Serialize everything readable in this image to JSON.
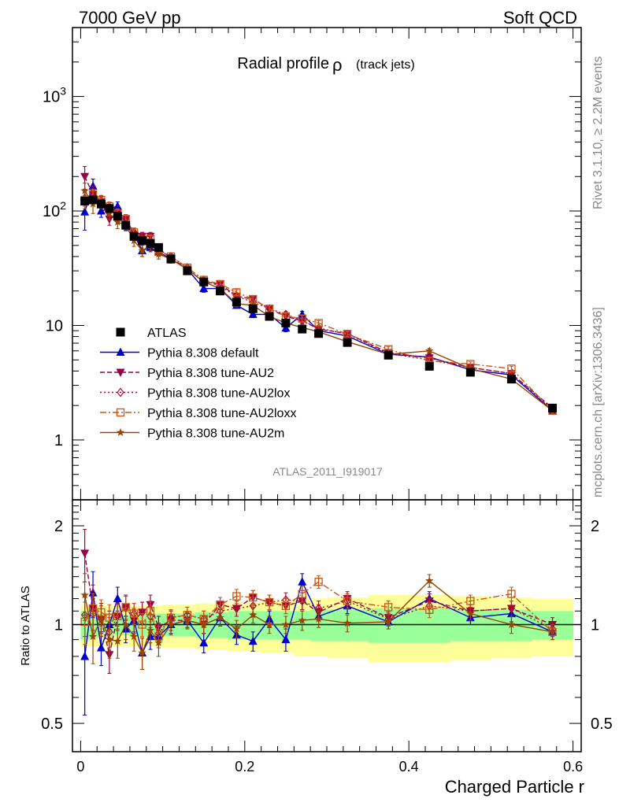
{
  "header": {
    "left": "7000 GeV pp",
    "right": "Soft QCD"
  },
  "side_text": {
    "rivet": "Rivet 3.1.10, ≥ 2.2M events",
    "mcplots": "mcplots.cern.ch [arXiv:1306.3436]"
  },
  "analysis_label": "ATLAS_2011_I919017",
  "colors": {
    "data": "#000000",
    "default": "#0000cc",
    "au2": "#990044",
    "au2lox": "#aa1133",
    "au2loxx": "#cc5511",
    "au2m": "#994400",
    "band_green": "#99ff99",
    "band_yellow": "#ffff99",
    "side_text": "#888888"
  },
  "chart_data": [
    {
      "type": "line",
      "title": "Radial profile",
      "title_symbol": "ρ",
      "title_suffix": "(track jets)",
      "y_scale": "log",
      "xlim": [
        -0.01,
        0.61
      ],
      "ylim": [
        0.3,
        4000
      ],
      "y_ticks": [
        {
          "value": 1,
          "label": "1"
        },
        {
          "value": 10,
          "label": "10"
        },
        {
          "value": 100,
          "label": "10",
          "sup": "2"
        },
        {
          "value": 1000,
          "label": "10",
          "sup": "3"
        }
      ],
      "legend_placement": "lower-left",
      "x": [
        0.005,
        0.015,
        0.025,
        0.035,
        0.045,
        0.055,
        0.065,
        0.075,
        0.085,
        0.095,
        0.11,
        0.13,
        0.15,
        0.17,
        0.19,
        0.21,
        0.23,
        0.25,
        0.27,
        0.29,
        0.325,
        0.375,
        0.425,
        0.475,
        0.525,
        0.575
      ],
      "series": [
        {
          "name": "ATLAS",
          "key": "data",
          "marker": "square",
          "dash": "",
          "values": [
            122,
            125,
            115,
            105,
            90,
            75,
            60,
            55,
            52,
            48,
            38,
            30,
            24,
            20,
            16,
            14,
            12,
            10.5,
            9.3,
            8.5,
            7.1,
            5.5,
            4.4,
            3.9,
            3.4,
            1.9
          ],
          "errors": [
            8,
            8,
            6,
            5,
            4,
            3,
            2,
            2,
            2,
            2,
            1.5,
            1,
            1,
            0.8,
            0.6,
            0.6,
            0.5,
            0.4,
            0.4,
            0.3,
            0.3,
            0.2,
            0.2,
            0.2,
            0.2,
            0.1
          ]
        },
        {
          "name": "Pythia 8.308 default",
          "key": "default",
          "marker": "triangle-up",
          "dash": "",
          "values": [
            98,
            165,
            100,
            105,
            110,
            75,
            62,
            45,
            48,
            44,
            38,
            31,
            21,
            21,
            15,
            12.5,
            12.5,
            9.5,
            12.5,
            9,
            8.1,
            5.6,
            5.3,
            4.1,
            3.7,
            1.8
          ],
          "errors": [
            30,
            25,
            12,
            10,
            10,
            7,
            5,
            5,
            4,
            3,
            2,
            1.5,
            1.5,
            1.2,
            0.9,
            0.8,
            0.8,
            0.7,
            0.8,
            0.5,
            0.4,
            0.3,
            0.3,
            0.2,
            0.2,
            0.1
          ]
        },
        {
          "name": "Pythia 8.308 tune-AU2",
          "key": "au2",
          "marker": "triangle-down",
          "dash": "6,3",
          "values": [
            200,
            140,
            120,
            85,
            95,
            85,
            62,
            60,
            60,
            47,
            39,
            31,
            24,
            23,
            18,
            17,
            14,
            12,
            11,
            9.3,
            8.5,
            5.8,
            5.2,
            4.3,
            3.8,
            1.9
          ],
          "errors": [
            45,
            25,
            15,
            10,
            10,
            8,
            6,
            5,
            5,
            4,
            3,
            2,
            1.5,
            1.3,
            1,
            0.9,
            0.8,
            0.7,
            0.7,
            0.5,
            0.4,
            0.3,
            0.3,
            0.2,
            0.2,
            0.1
          ]
        },
        {
          "name": "Pythia 8.308 tune-AU2lox",
          "key": "au2lox",
          "marker": "diamond",
          "dash": "2,3",
          "values": [
            130,
            135,
            120,
            100,
            95,
            85,
            65,
            60,
            55,
            45,
            40,
            32,
            25,
            22,
            18,
            16,
            14,
            12.5,
            11,
            9.5,
            8.4,
            5.7,
            5.0,
            4.3,
            3.8,
            1.85
          ],
          "errors": [
            20,
            15,
            12,
            10,
            9,
            8,
            6,
            5,
            5,
            4,
            3,
            2,
            1.5,
            1.3,
            1,
            0.9,
            0.8,
            0.7,
            0.7,
            0.5,
            0.4,
            0.3,
            0.3,
            0.2,
            0.2,
            0.1
          ]
        },
        {
          "name": "Pythia 8.308 tune-AU2loxx",
          "key": "au2loxx",
          "marker": "square-open",
          "dash": "8,3,2,3",
          "values": [
            125,
            140,
            125,
            110,
            95,
            85,
            65,
            55,
            57,
            44,
            40,
            32,
            25,
            23,
            19.5,
            17,
            14,
            12,
            11.5,
            10.5,
            8.4,
            6.2,
            4.9,
            4.6,
            4.2,
            1.8
          ],
          "errors": [
            20,
            15,
            12,
            10,
            9,
            8,
            6,
            5,
            5,
            4,
            3,
            2,
            1.5,
            1.3,
            1,
            0.9,
            0.8,
            0.7,
            0.7,
            0.5,
            0.4,
            0.3,
            0.3,
            0.2,
            0.2,
            0.1
          ]
        },
        {
          "name": "Pythia 8.308 tune-AU2m",
          "key": "au2m",
          "marker": "star",
          "dash": "",
          "values": [
            150,
            115,
            120,
            95,
            80,
            75,
            55,
            45,
            50,
            42,
            38,
            31,
            24,
            21,
            15.5,
            15,
            12,
            10.5,
            9.6,
            8.8,
            7.2,
            5.6,
            6.0,
            4.2,
            3.4,
            1.8
          ],
          "errors": [
            25,
            20,
            15,
            12,
            10,
            8,
            6,
            5,
            5,
            4,
            3,
            2,
            1.5,
            1.3,
            1,
            0.9,
            0.8,
            0.7,
            0.7,
            0.5,
            0.4,
            0.3,
            0.3,
            0.2,
            0.2,
            0.1
          ]
        }
      ]
    },
    {
      "type": "line",
      "ylabel": "Ratio to ATLAS",
      "xlabel": "Charged Particle r",
      "y_scale": "log",
      "xlim": [
        -0.01,
        0.61
      ],
      "ylim": [
        0.41,
        2.4
      ],
      "x_ticks": [
        {
          "value": 0,
          "label": "0"
        },
        {
          "value": 0.2,
          "label": "0.2"
        },
        {
          "value": 0.4,
          "label": "0.4"
        },
        {
          "value": 0.6,
          "label": "0.6"
        }
      ],
      "y_ticks": [
        {
          "value": 0.5,
          "label": "0.5"
        },
        {
          "value": 1,
          "label": "1"
        },
        {
          "value": 2,
          "label": "2"
        }
      ],
      "x_edges": [
        0,
        0.01,
        0.02,
        0.03,
        0.04,
        0.05,
        0.06,
        0.07,
        0.08,
        0.09,
        0.1,
        0.12,
        0.14,
        0.16,
        0.18,
        0.2,
        0.22,
        0.24,
        0.26,
        0.28,
        0.3,
        0.35,
        0.4,
        0.45,
        0.5,
        0.55,
        0.6
      ],
      "band_green": [
        [
          0.9,
          1.1
        ],
        [
          0.91,
          1.09
        ],
        [
          0.92,
          1.08
        ],
        [
          0.92,
          1.08
        ],
        [
          0.93,
          1.07
        ],
        [
          0.93,
          1.07
        ],
        [
          0.92,
          1.08
        ],
        [
          0.92,
          1.08
        ],
        [
          0.92,
          1.08
        ],
        [
          0.92,
          1.08
        ],
        [
          0.92,
          1.08
        ],
        [
          0.92,
          1.08
        ],
        [
          0.91,
          1.09
        ],
        [
          0.91,
          1.09
        ],
        [
          0.9,
          1.1
        ],
        [
          0.9,
          1.1
        ],
        [
          0.9,
          1.1
        ],
        [
          0.9,
          1.1
        ],
        [
          0.9,
          1.1
        ],
        [
          0.89,
          1.11
        ],
        [
          0.89,
          1.11
        ],
        [
          0.88,
          1.12
        ],
        [
          0.88,
          1.12
        ],
        [
          0.89,
          1.11
        ],
        [
          0.89,
          1.11
        ],
        [
          0.9,
          1.1
        ]
      ],
      "band_yellow": [
        [
          0.86,
          1.14
        ],
        [
          0.86,
          1.14
        ],
        [
          0.86,
          1.14
        ],
        [
          0.86,
          1.14
        ],
        [
          0.86,
          1.14
        ],
        [
          0.86,
          1.14
        ],
        [
          0.86,
          1.14
        ],
        [
          0.86,
          1.14
        ],
        [
          0.86,
          1.14
        ],
        [
          0.86,
          1.14
        ],
        [
          0.85,
          1.15
        ],
        [
          0.85,
          1.15
        ],
        [
          0.84,
          1.16
        ],
        [
          0.84,
          1.16
        ],
        [
          0.83,
          1.17
        ],
        [
          0.83,
          1.17
        ],
        [
          0.82,
          1.18
        ],
        [
          0.82,
          1.18
        ],
        [
          0.8,
          1.2
        ],
        [
          0.8,
          1.2
        ],
        [
          0.79,
          1.21
        ],
        [
          0.77,
          1.23
        ],
        [
          0.77,
          1.23
        ],
        [
          0.78,
          1.22
        ],
        [
          0.79,
          1.21
        ],
        [
          0.8,
          1.2
        ]
      ],
      "x": [
        0.005,
        0.015,
        0.025,
        0.035,
        0.045,
        0.055,
        0.065,
        0.075,
        0.085,
        0.095,
        0.11,
        0.13,
        0.15,
        0.17,
        0.19,
        0.21,
        0.23,
        0.25,
        0.27,
        0.29,
        0.325,
        0.375,
        0.425,
        0.475,
        0.525,
        0.575
      ],
      "series": [
        {
          "name": "Pythia 8.308 default",
          "key": "default",
          "marker": "triangle-up",
          "dash": "",
          "values": [
            0.8,
            1.25,
            0.85,
            1.0,
            1.2,
            0.97,
            1.03,
            0.82,
            0.92,
            0.92,
            1.0,
            1.03,
            0.88,
            1.05,
            0.93,
            0.89,
            1.04,
            0.9,
            1.35,
            1.06,
            1.14,
            1.02,
            1.2,
            1.05,
            1.08,
            0.95
          ],
          "errors": [
            0.27,
            0.2,
            0.1,
            0.1,
            0.1,
            0.09,
            0.08,
            0.09,
            0.08,
            0.07,
            0.06,
            0.05,
            0.06,
            0.06,
            0.06,
            0.06,
            0.06,
            0.07,
            0.08,
            0.06,
            0.06,
            0.05,
            0.06,
            0.05,
            0.06,
            0.05
          ]
        },
        {
          "name": "Pythia 8.308 tune-AU2",
          "key": "au2",
          "marker": "triangle-down",
          "dash": "6,3",
          "values": [
            1.65,
            1.12,
            1.04,
            0.81,
            1.06,
            1.13,
            1.03,
            1.09,
            1.15,
            0.98,
            1.03,
            1.03,
            1.0,
            1.15,
            1.12,
            1.21,
            1.17,
            1.14,
            1.18,
            1.09,
            1.2,
            1.05,
            1.18,
            1.1,
            1.12,
            1.0
          ],
          "errors": [
            0.3,
            0.2,
            0.12,
            0.1,
            0.1,
            0.1,
            0.09,
            0.08,
            0.08,
            0.08,
            0.07,
            0.06,
            0.06,
            0.06,
            0.06,
            0.06,
            0.06,
            0.06,
            0.07,
            0.06,
            0.06,
            0.05,
            0.06,
            0.05,
            0.06,
            0.05
          ]
        },
        {
          "name": "Pythia 8.308 tune-AU2lox",
          "key": "au2lox",
          "marker": "diamond",
          "dash": "2,3",
          "values": [
            1.07,
            1.08,
            1.04,
            0.95,
            1.06,
            1.13,
            1.08,
            1.09,
            1.06,
            0.94,
            1.05,
            1.07,
            1.04,
            1.1,
            1.12,
            1.14,
            1.17,
            1.19,
            1.18,
            1.12,
            1.18,
            1.04,
            1.14,
            1.1,
            1.12,
            0.97
          ],
          "errors": [
            0.15,
            0.12,
            0.1,
            0.1,
            0.09,
            0.09,
            0.08,
            0.08,
            0.08,
            0.07,
            0.06,
            0.06,
            0.06,
            0.06,
            0.06,
            0.06,
            0.06,
            0.06,
            0.07,
            0.06,
            0.06,
            0.05,
            0.06,
            0.05,
            0.06,
            0.05
          ]
        },
        {
          "name": "Pythia 8.308 tune-AU2loxx",
          "key": "au2loxx",
          "marker": "square-open",
          "dash": "8,3,2,3",
          "values": [
            1.02,
            1.12,
            1.09,
            1.05,
            1.06,
            1.13,
            1.08,
            1.0,
            1.1,
            0.92,
            1.05,
            1.07,
            1.04,
            1.15,
            1.22,
            1.21,
            1.17,
            1.14,
            1.24,
            1.35,
            1.18,
            1.13,
            1.11,
            1.18,
            1.24,
            0.95
          ],
          "errors": [
            0.15,
            0.12,
            0.1,
            0.1,
            0.09,
            0.09,
            0.08,
            0.08,
            0.08,
            0.07,
            0.06,
            0.06,
            0.06,
            0.06,
            0.06,
            0.06,
            0.06,
            0.06,
            0.07,
            0.06,
            0.06,
            0.05,
            0.06,
            0.05,
            0.06,
            0.05
          ]
        },
        {
          "name": "Pythia 8.308 tune-AU2m",
          "key": "au2m",
          "marker": "star",
          "dash": "",
          "values": [
            1.23,
            0.92,
            1.04,
            0.9,
            0.89,
            1.0,
            0.92,
            0.82,
            0.96,
            0.88,
            1.0,
            1.03,
            1.0,
            1.05,
            0.97,
            1.07,
            1.0,
            1.0,
            1.03,
            1.04,
            1.01,
            1.02,
            1.36,
            1.08,
            1.0,
            0.95
          ],
          "errors": [
            0.2,
            0.16,
            0.12,
            0.11,
            0.1,
            0.1,
            0.09,
            0.09,
            0.08,
            0.08,
            0.07,
            0.06,
            0.06,
            0.06,
            0.06,
            0.06,
            0.06,
            0.06,
            0.07,
            0.06,
            0.06,
            0.05,
            0.06,
            0.05,
            0.06,
            0.05
          ]
        }
      ]
    }
  ]
}
